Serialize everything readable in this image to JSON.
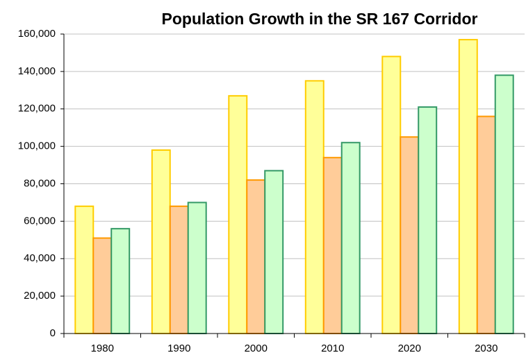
{
  "chart_data": {
    "type": "bar",
    "title": "Population Growth in the SR 167 Corridor",
    "categories": [
      "1980",
      "1990",
      "2000",
      "2010",
      "2020",
      "2030"
    ],
    "series": [
      {
        "color": "#ffff99",
        "edgecolor": "#ffcc00",
        "values": [
          68000,
          98000,
          127000,
          135000,
          148000,
          157000
        ]
      },
      {
        "color": "#ffcc99",
        "edgecolor": "#ff9900",
        "values": [
          51000,
          68000,
          82000,
          94000,
          105000,
          116000
        ]
      },
      {
        "color": "#ccffcc",
        "edgecolor": "#339966",
        "values": [
          56000,
          70000,
          87000,
          102000,
          121000,
          138000
        ]
      }
    ],
    "ylim": [
      0,
      160000
    ],
    "yticks": [
      0,
      {
        "value": 20000,
        "label": "20,000"
      },
      {
        "value": 40000,
        "label": "40,000"
      },
      {
        "value": 60000,
        "label": "60,000"
      },
      {
        "value": 80000,
        "label": "80,000"
      },
      {
        "value": 100000,
        "label": "100,000"
      },
      {
        "value": 120000,
        "label": "120,000"
      },
      {
        "value": 140000,
        "label": "140,000"
      },
      {
        "value": 160000,
        "label": "160,000"
      }
    ],
    "grid": true
  }
}
